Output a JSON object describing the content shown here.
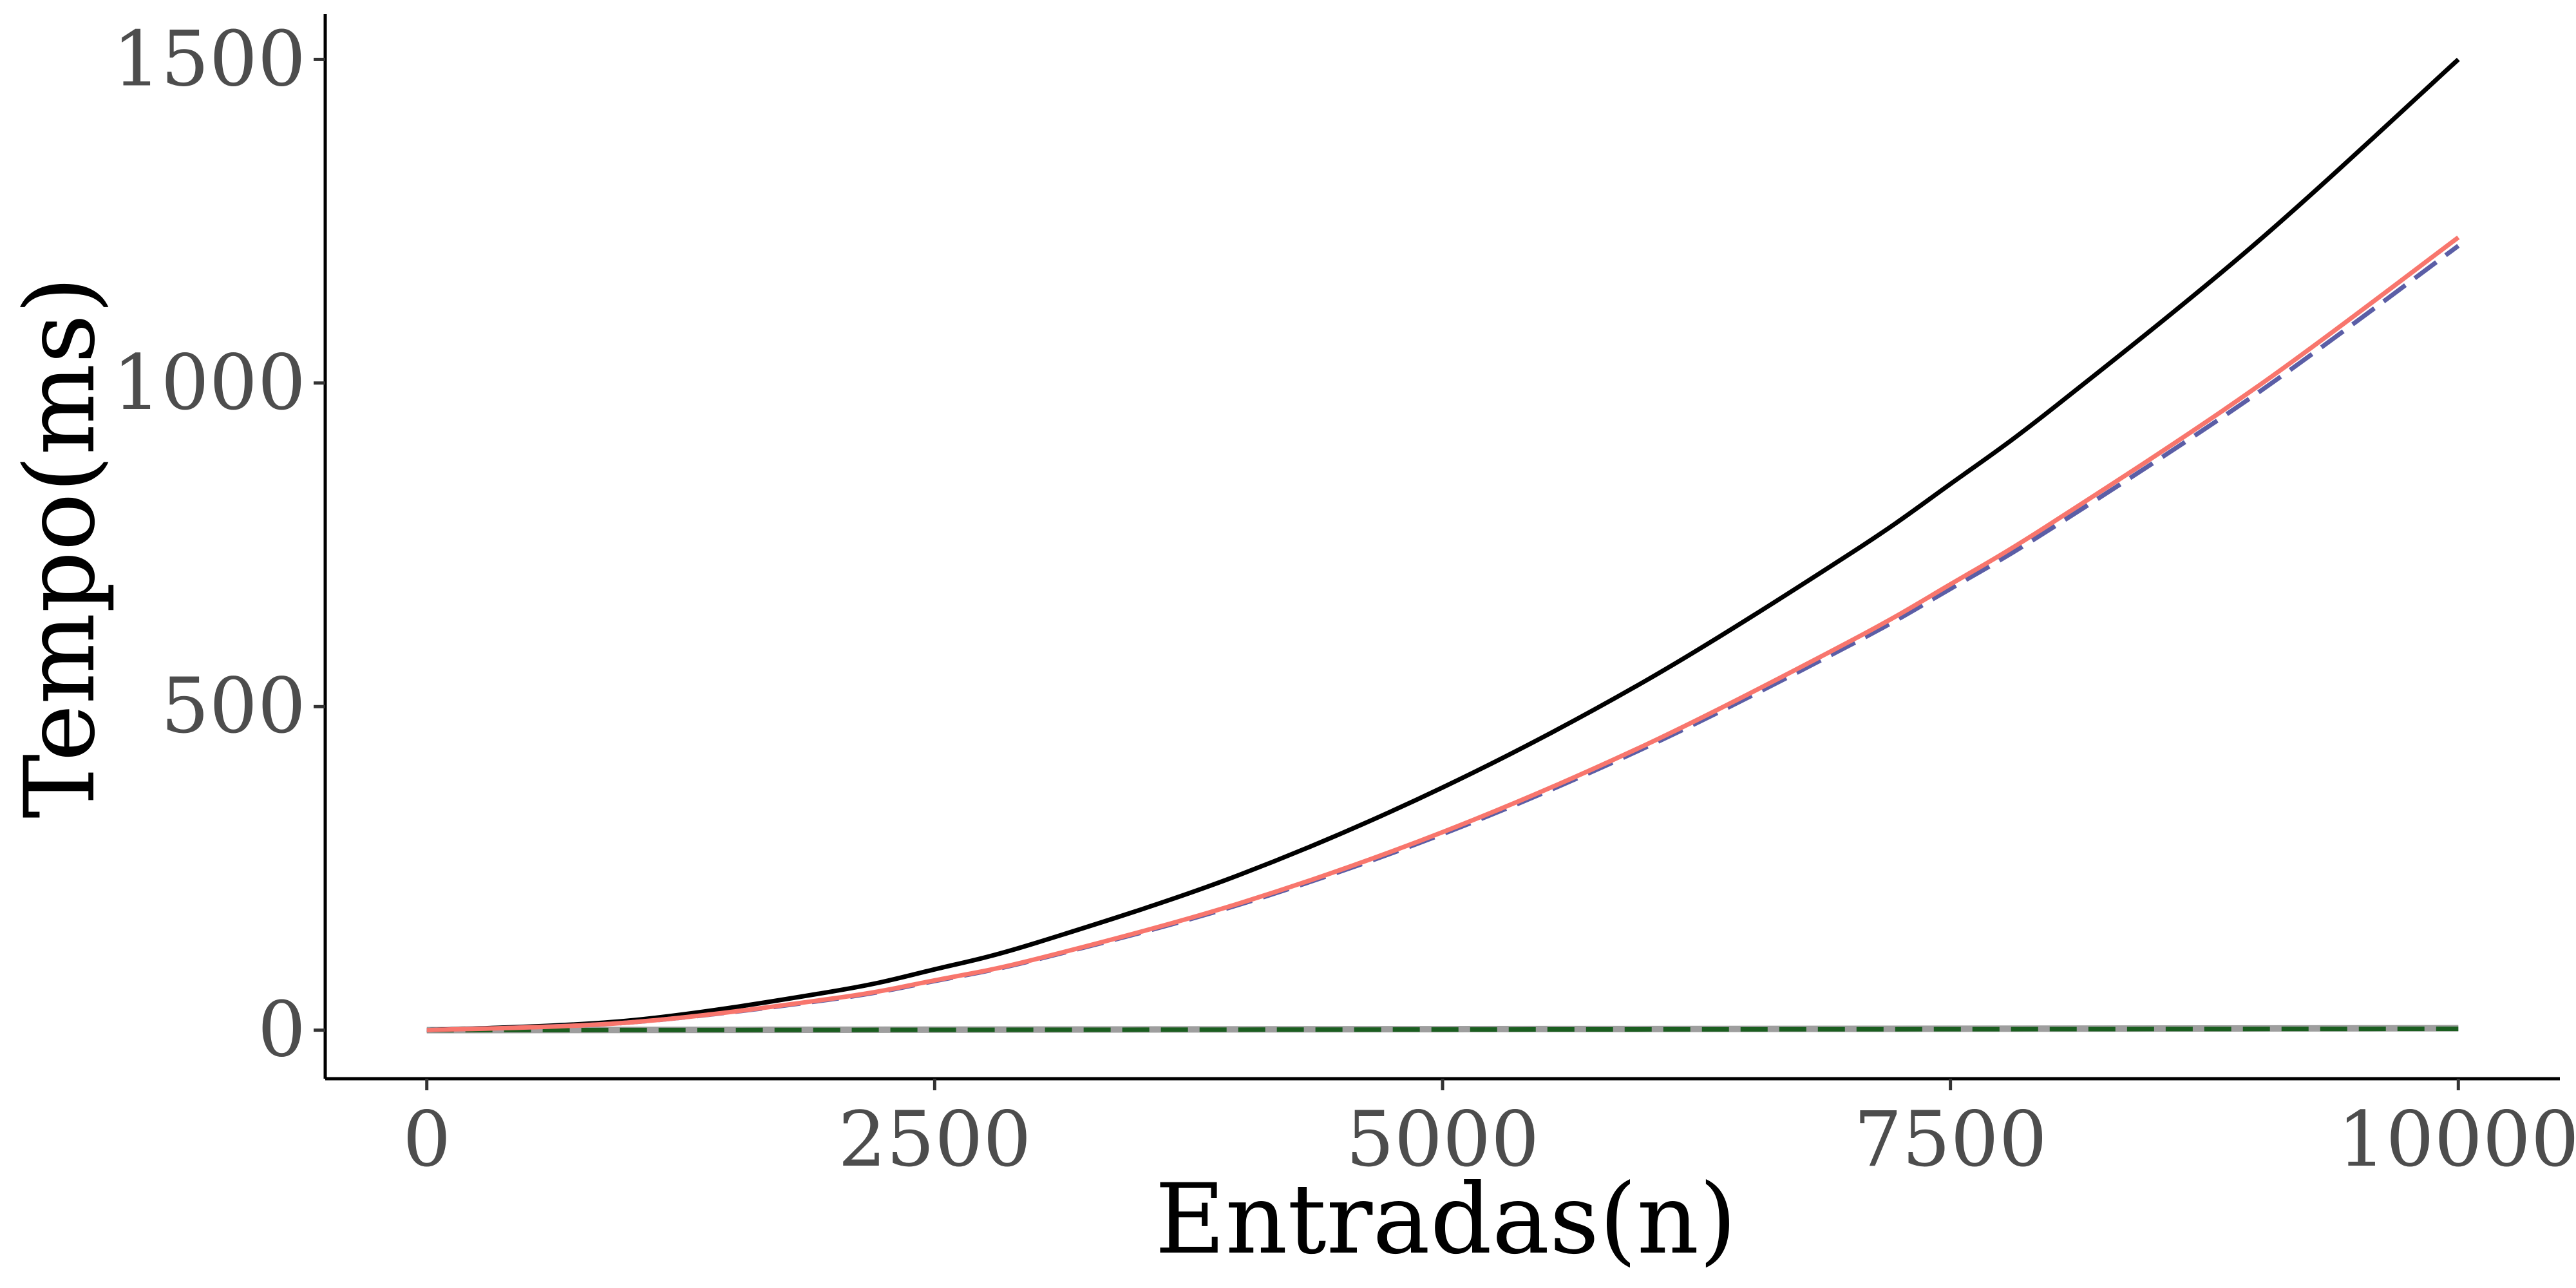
{
  "chart_data": {
    "type": "line",
    "title": "",
    "xlabel": "Entradas(n)",
    "ylabel": "Tempo(ms)",
    "xlim": [
      -500,
      10500
    ],
    "ylim": [
      -75,
      1570
    ],
    "x_ticks": [
      0,
      2500,
      5000,
      7500,
      10000
    ],
    "x_tick_labels": [
      "0",
      "2500",
      "5000",
      "7500",
      "10000"
    ],
    "y_ticks": [
      0,
      500,
      1000,
      1500
    ],
    "y_tick_labels": [
      "0",
      "500",
      "1000",
      "1500"
    ],
    "grid": false,
    "legend": "none",
    "series": [
      {
        "color": "#000000",
        "dash": "solid",
        "x": [
          0,
          1000,
          2000,
          2500,
          3000,
          4000,
          5000,
          6000,
          7000,
          7500,
          8000,
          9000,
          10000
        ],
        "values": [
          0,
          15,
          60,
          94,
          135,
          240,
          375,
          540,
          735,
          844,
          960,
          1215,
          1500
        ]
      },
      {
        "color": "#f8766d",
        "dash": "solid",
        "x": [
          0,
          1000,
          2000,
          2500,
          3000,
          4000,
          5000,
          6000,
          7000,
          7500,
          8000,
          9000,
          10000
        ],
        "values": [
          0,
          12,
          49,
          77,
          110,
          196,
          306,
          441,
          600,
          689,
          784,
          992,
          1225
        ]
      },
      {
        "color": "#5b5ea6",
        "dash": "dashed",
        "x": [
          0,
          1000,
          2000,
          2500,
          3000,
          4000,
          5000,
          6000,
          7000,
          7500,
          8000,
          9000,
          10000
        ],
        "values": [
          0,
          12,
          48,
          76,
          109,
          194,
          303,
          437,
          594,
          682,
          776,
          982,
          1212
        ]
      },
      {
        "color": "#1b5e20",
        "dash": "dashed",
        "x": [
          0,
          10000
        ],
        "values": [
          0,
          2
        ]
      },
      {
        "color": "#9e9e9e",
        "dash": "solid",
        "x": [
          0,
          10000
        ],
        "values": [
          0,
          3
        ]
      }
    ]
  }
}
